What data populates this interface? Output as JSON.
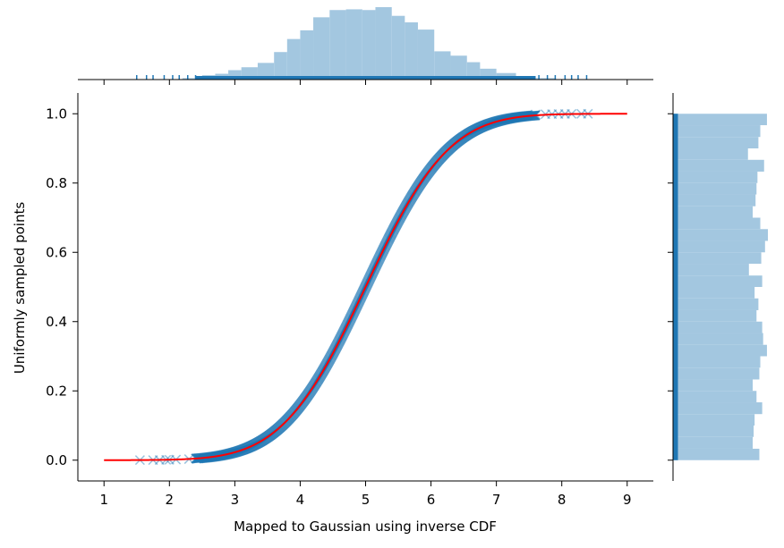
{
  "chart_data": {
    "type": "scatter",
    "title": "",
    "xlabel": "Mapped to Gaussian using inverse CDF",
    "ylabel": "Uniformly sampled points",
    "xlim": [
      0.6,
      9.4
    ],
    "ylim": [
      -0.06,
      1.06
    ],
    "xticks": [
      "1",
      "2",
      "3",
      "4",
      "5",
      "6",
      "7",
      "8",
      "9"
    ],
    "yticks": [
      "0.0",
      "0.2",
      "0.4",
      "0.6",
      "0.8",
      "1.0"
    ],
    "distribution": {
      "mean": 5,
      "std": 1
    },
    "curve": {
      "color": "#ff0000",
      "x_range": [
        1,
        9
      ]
    },
    "scatter": {
      "color": "#1f77b4",
      "marker": "x",
      "n_points": 1000
    },
    "outliers_low": [
      [
        1.55,
        0.0003
      ],
      [
        1.75,
        0.0004
      ],
      [
        1.85,
        0.0005
      ],
      [
        1.95,
        0.001
      ],
      [
        2.0,
        0.0012
      ],
      [
        2.1,
        0.0018
      ],
      [
        2.3,
        0.003
      ],
      [
        2.45,
        0.005
      ]
    ],
    "outliers_high": [
      [
        7.6,
        0.998
      ],
      [
        7.75,
        0.9987
      ],
      [
        7.85,
        0.999
      ],
      [
        7.95,
        0.9993
      ],
      [
        8.05,
        0.9995
      ],
      [
        8.15,
        0.9996
      ],
      [
        8.3,
        0.9998
      ],
      [
        8.4,
        0.9999
      ]
    ],
    "marginal_x": {
      "color": "#a3c7e0",
      "bins": [
        [
          2.2,
          2.5,
          0.02
        ],
        [
          2.5,
          2.7,
          0.06
        ],
        [
          2.7,
          2.9,
          0.08
        ],
        [
          2.9,
          3.1,
          0.13
        ],
        [
          3.1,
          3.35,
          0.17
        ],
        [
          3.35,
          3.6,
          0.23
        ],
        [
          3.6,
          3.8,
          0.38
        ],
        [
          3.8,
          4.0,
          0.56
        ],
        [
          4.0,
          4.2,
          0.68
        ],
        [
          4.2,
          4.45,
          0.86
        ],
        [
          4.45,
          4.7,
          0.96
        ],
        [
          4.7,
          4.95,
          0.97
        ],
        [
          4.95,
          5.15,
          0.96
        ],
        [
          5.15,
          5.4,
          1.0
        ],
        [
          5.4,
          5.6,
          0.88
        ],
        [
          5.6,
          5.8,
          0.79
        ],
        [
          5.8,
          6.05,
          0.69
        ],
        [
          6.05,
          6.3,
          0.39
        ],
        [
          6.3,
          6.55,
          0.33
        ],
        [
          6.55,
          6.75,
          0.24
        ],
        [
          6.75,
          7.0,
          0.15
        ],
        [
          7.0,
          7.3,
          0.09
        ],
        [
          7.3,
          7.6,
          0.04
        ],
        [
          7.6,
          7.9,
          0.02
        ]
      ],
      "rug": [
        1.5,
        1.65,
        1.75,
        1.92,
        2.05,
        2.15,
        2.28,
        2.4,
        7.65,
        7.78,
        7.9,
        8.05,
        8.15,
        8.25,
        8.38
      ]
    },
    "marginal_y": {
      "color": "#a3c7e0",
      "bins": [
        [
          0.0,
          0.033,
          0.91
        ],
        [
          0.033,
          0.067,
          0.84
        ],
        [
          0.067,
          0.1,
          0.85
        ],
        [
          0.1,
          0.133,
          0.86
        ],
        [
          0.133,
          0.167,
          0.94
        ],
        [
          0.167,
          0.2,
          0.88
        ],
        [
          0.2,
          0.233,
          0.84
        ],
        [
          0.233,
          0.267,
          0.91
        ],
        [
          0.267,
          0.3,
          0.92
        ],
        [
          0.3,
          0.333,
          0.99
        ],
        [
          0.333,
          0.367,
          0.95
        ],
        [
          0.367,
          0.4,
          0.94
        ],
        [
          0.4,
          0.433,
          0.88
        ],
        [
          0.433,
          0.467,
          0.9
        ],
        [
          0.467,
          0.5,
          0.86
        ],
        [
          0.5,
          0.533,
          0.94
        ],
        [
          0.533,
          0.567,
          0.8
        ],
        [
          0.567,
          0.6,
          0.93
        ],
        [
          0.6,
          0.633,
          0.97
        ],
        [
          0.633,
          0.667,
          1.0
        ],
        [
          0.667,
          0.7,
          0.92
        ],
        [
          0.7,
          0.733,
          0.84
        ],
        [
          0.733,
          0.767,
          0.87
        ],
        [
          0.767,
          0.8,
          0.88
        ],
        [
          0.8,
          0.833,
          0.89
        ],
        [
          0.833,
          0.867,
          0.96
        ],
        [
          0.867,
          0.9,
          0.79
        ],
        [
          0.9,
          0.933,
          0.9
        ],
        [
          0.933,
          0.967,
          0.92
        ],
        [
          0.967,
          1.0,
          0.99
        ]
      ]
    }
  }
}
